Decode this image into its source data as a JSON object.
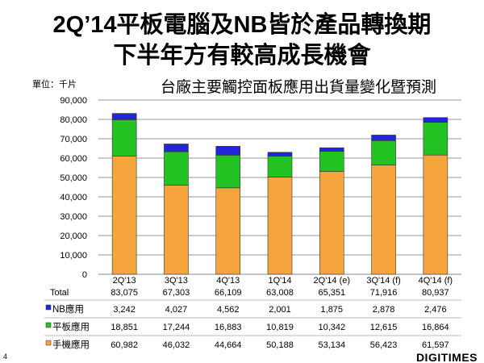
{
  "slide": {
    "title_line1": "2Q’14平板電腦及NB皆於產品轉換期",
    "title_line2": "下半年方有較高成長機會",
    "page_number": "4",
    "logo": "DIGITIMES"
  },
  "chart_data": {
    "type": "bar",
    "stacked": true,
    "title": "台廠主要觸控面板應用出貨量變化暨預測",
    "unit_label": "單位：千片",
    "categories": [
      "2Q'13",
      "3Q'13",
      "4Q'13",
      "1Q'14",
      "2Q'14 (e)",
      "3Q'14 (f)",
      "4Q'14 (f)"
    ],
    "ylim": [
      0,
      90000
    ],
    "yticks": [
      0,
      10000,
      20000,
      30000,
      40000,
      50000,
      60000,
      70000,
      80000,
      90000
    ],
    "ytick_labels": [
      "0",
      "10,000",
      "20,000",
      "30,000",
      "40,000",
      "50,000",
      "60,000",
      "70,000",
      "80,000",
      "90,000"
    ],
    "total_label": "Total",
    "totals": [
      "83,075",
      "67,303",
      "66,109",
      "63,008",
      "65,351",
      "71,916",
      "80,937"
    ],
    "series": [
      {
        "name": "手機應用",
        "color": "#F5A53C",
        "values": [
          60982,
          46032,
          44664,
          50188,
          53134,
          56423,
          61597
        ],
        "labels": [
          "60,982",
          "46,032",
          "44,664",
          "50,188",
          "53,134",
          "56,423",
          "61,597"
        ]
      },
      {
        "name": "平板應用",
        "color": "#22C322",
        "values": [
          18851,
          17244,
          16883,
          10819,
          10342,
          12615,
          16864
        ],
        "labels": [
          "18,851",
          "17,244",
          "16,883",
          "10,819",
          "10,342",
          "12,615",
          "16,864"
        ]
      },
      {
        "name": "NB應用",
        "color": "#2424D8",
        "values": [
          3242,
          4027,
          4562,
          2001,
          1875,
          2878,
          2476
        ],
        "labels": [
          "3,242",
          "4,027",
          "4,562",
          "2,001",
          "1,875",
          "2,878",
          "2,476"
        ]
      }
    ]
  }
}
